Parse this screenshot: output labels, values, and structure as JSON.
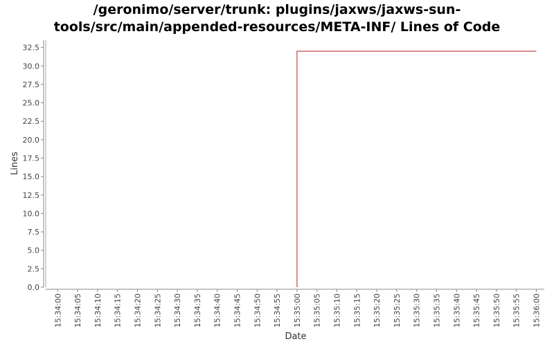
{
  "chart_data": {
    "type": "line",
    "title_lines": [
      "/geronimo/server/trunk: plugins/jaxws/jaxws-sun-",
      "tools/src/main/appended-resources/META-INF/ Lines of Code"
    ],
    "xlabel": "Date",
    "ylabel": "Lines",
    "x_ticks": [
      "15:34:00",
      "15:34:05",
      "15:34:10",
      "15:34:15",
      "15:34:20",
      "15:34:25",
      "15:34:30",
      "15:34:35",
      "15:34:40",
      "15:34:45",
      "15:34:50",
      "15:34:55",
      "15:35:00",
      "15:35:05",
      "15:35:10",
      "15:35:15",
      "15:35:20",
      "15:35:25",
      "15:35:30",
      "15:35:35",
      "15:35:40",
      "15:35:45",
      "15:35:50",
      "15:35:55",
      "15:36:00"
    ],
    "y_ticks": [
      "0.0",
      "2.5",
      "5.0",
      "7.5",
      "10.0",
      "12.5",
      "15.0",
      "17.5",
      "20.0",
      "22.5",
      "25.0",
      "27.5",
      "30.0",
      "32.5"
    ],
    "ylim": [
      0,
      33.5
    ],
    "xlim": [
      "15:33:57",
      "15:36:02"
    ],
    "grid": false,
    "series": [
      {
        "color": "#b22222",
        "points": [
          {
            "x": "15:35:00",
            "y": 0
          },
          {
            "x": "15:35:00",
            "y": 32
          },
          {
            "x": "15:36:00",
            "y": 32
          }
        ]
      }
    ]
  }
}
